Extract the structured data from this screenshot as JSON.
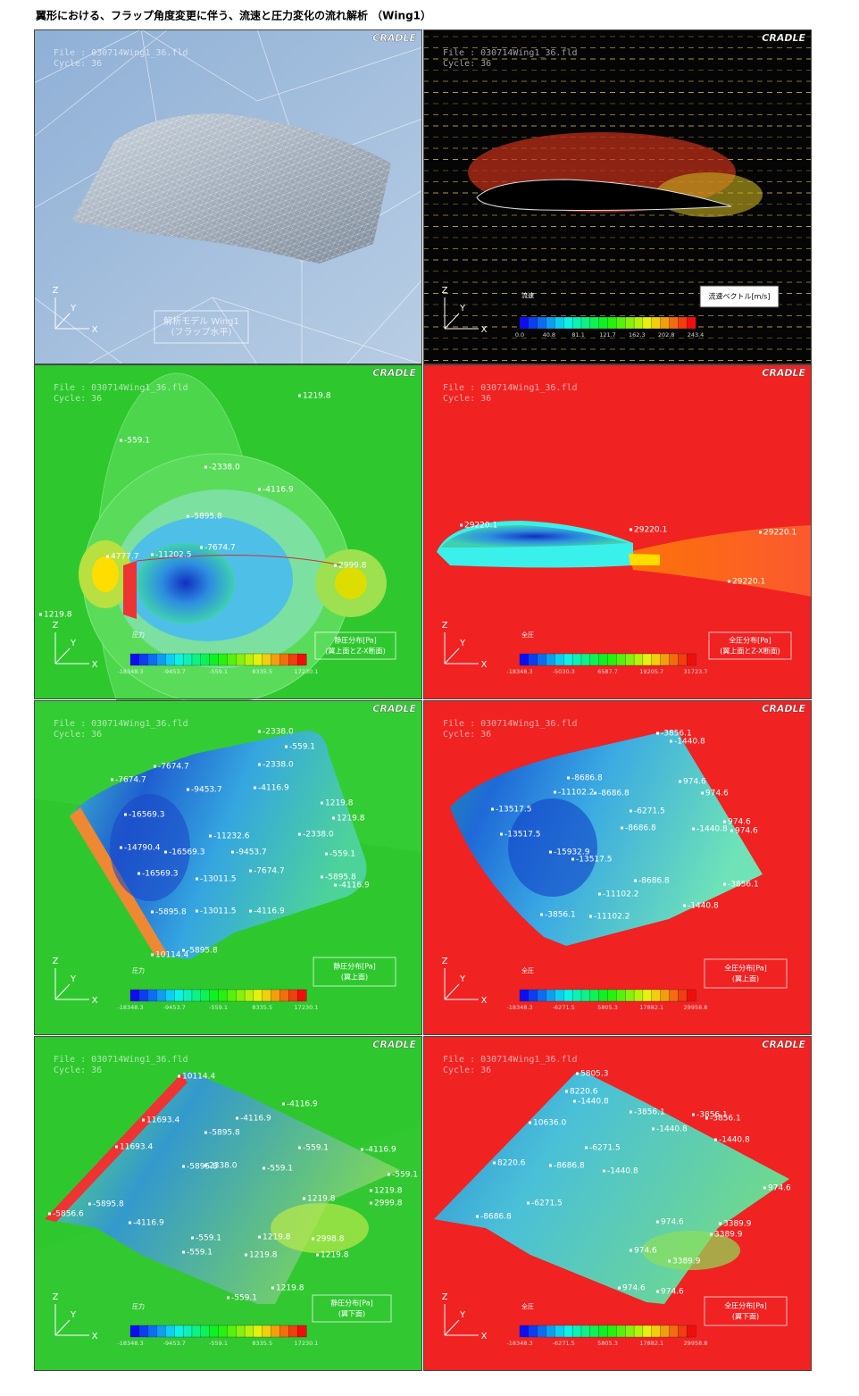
{
  "title": "翼形における、フラップ角度変更に伴う、流速と圧力変化の流れ解析 （Wing1）",
  "panels": [
    {
      "brand": "CRADLE",
      "file": "File : 030714Wing1_36.fld",
      "cycle": "Cycle: 36",
      "axes": [
        "Z",
        "Y",
        "X"
      ],
      "caption": [
        "解析モデル Wing1",
        "(フラップ水平)"
      ]
    },
    {
      "brand": "CRADLE",
      "file": "File : 030714Wing1_36.fld",
      "cycle": "Cycle: 36",
      "axes": [
        "Z",
        "Y",
        "X"
      ],
      "caption": [
        "流速ベクトル[m/s]"
      ],
      "colorbar": {
        "title": "流速",
        "ticks": [
          "0.0",
          "40.8",
          "81.1",
          "121.7",
          "162.3",
          "202.8",
          "243.4"
        ]
      }
    },
    {
      "brand": "CRADLE",
      "file": "File : 030714Wing1_36.fld",
      "cycle": "Cycle: 36",
      "axes": [
        "Z",
        "Y",
        "X"
      ],
      "caption": [
        "静圧分布[Pa]",
        "(翼上面とZ-X断面)"
      ],
      "colorbar": {
        "title": "圧力",
        "ticks": [
          "-18348.3",
          "-9453.7",
          "-559.1",
          "8335.5",
          "17230.1"
        ]
      },
      "labels": [
        "4777.7",
        "-11202.5",
        "1219.8",
        "-559.1",
        "-2338.0",
        "-4116.9",
        "-5895.8",
        "-7674.7",
        "2999.8",
        "1219.8"
      ]
    },
    {
      "brand": "CRADLE",
      "file": "File : 030714Wing1_36.fld",
      "cycle": "Cycle: 36",
      "axes": [
        "Z",
        "Y",
        "X"
      ],
      "caption": [
        "全圧分布[Pa]",
        "(翼上面とZ-X断面)"
      ],
      "colorbar": {
        "title": "全圧",
        "ticks": [
          "-18348.3",
          "-5030.3",
          "6587.7",
          "19205.7",
          "31723.7"
        ]
      },
      "labels": [
        "29220.1",
        "29220.1",
        "29220.1",
        "29220.1"
      ]
    },
    {
      "brand": "CRADLE",
      "file": "File : 030714Wing1_36.fld",
      "cycle": "Cycle: 36",
      "axes": [
        "Z",
        "Y",
        "X"
      ],
      "caption": [
        "静圧分布[Pa]",
        "(翼上面)"
      ],
      "colorbar": {
        "title": "圧力",
        "ticks": [
          "-18348.3",
          "-9453.7",
          "-559.1",
          "8335.5",
          "17230.1"
        ]
      },
      "labels": [
        "-2338.0",
        "-559.1",
        "-7674.7",
        "-2338.0",
        "-7674.7",
        "-9453.7",
        "-4116.9",
        "1219.8",
        "1219.8",
        "-16569.3",
        "-11232.6",
        "-2338.0",
        "-14790.4",
        "-16569.3",
        "-9453.7",
        "-559.1",
        "-7674.7",
        "-5895.8",
        "-16569.3",
        "-13011.5",
        "-4116.9",
        "-5895.8",
        "-13011.5",
        "-4116.9",
        "10114.4",
        "-5895.8"
      ]
    },
    {
      "brand": "CRADLE",
      "file": "File : 030714Wing1_36.fld",
      "cycle": "Cycle: 36",
      "axes": [
        "Z",
        "Y",
        "X"
      ],
      "caption": [
        "全圧分布[Pa]",
        "(翼上面)"
      ],
      "colorbar": {
        "title": "全圧",
        "ticks": [
          "-18348.3",
          "-6271.5",
          "5805.3",
          "17882.1",
          "29958.8"
        ]
      },
      "labels": [
        "-3856.1",
        "-1440.8",
        "-8686.8",
        "-11102.2",
        "-8686.8",
        "974.6",
        "974.6",
        "-13517.5",
        "-6271.5",
        "-13517.5",
        "-8686.8",
        "974.6",
        "-1440.8",
        "974.6",
        "-15932.9",
        "-13517.5",
        "-8686.8",
        "-3856.1",
        "-11102.2",
        "-1440.8",
        "-3856.1",
        "-11102.2"
      ]
    },
    {
      "brand": "CRADLE",
      "file": "File : 030714Wing1_36.fld",
      "cycle": "Cycle: 36",
      "axes": [
        "Z",
        "Y",
        "X"
      ],
      "caption": [
        "静圧分布[Pa]",
        "(翼下面)"
      ],
      "colorbar": {
        "title": "圧力",
        "ticks": [
          "-18348.3",
          "-9453.7",
          "-559.1",
          "8335.5",
          "17230.1"
        ]
      },
      "labels": [
        "10114.4",
        "-4116.9",
        "11693.4",
        "-4116.9",
        "-5895.8",
        "11693.4",
        "-4116.9",
        "-559.1",
        "-5895.8",
        "2338.0",
        "-559.1",
        "-559.1",
        "1219.8",
        "1219.8",
        "2999.8",
        "-5895.8",
        "-4116.9",
        "-559.1",
        "1219.8",
        "2998.8",
        "-559.1",
        "1219.8",
        "1219.8",
        "1219.8",
        "-559.1",
        "-5856.6"
      ]
    },
    {
      "brand": "CRADLE",
      "file": "File : 030714Wing1_36.fld",
      "cycle": "Cycle: 36",
      "axes": [
        "Z",
        "Y",
        "X"
      ],
      "caption": [
        "全圧分布[Pa]",
        "(翼下面)"
      ],
      "colorbar": {
        "title": "全圧",
        "ticks": [
          "-18348.3",
          "-6271.5",
          "5805.3",
          "17882.1",
          "29958.8"
        ]
      },
      "labels": [
        "5805.3",
        "8220.6",
        "-1440.8",
        "10636.0",
        "-3856.1",
        "-3856.1",
        "-3856.1",
        "-1440.8",
        "-6271.5",
        "-1440.8",
        "8220.6",
        "-8686.8",
        "-1440.8",
        "974.6",
        "-6271.5",
        "-8686.8",
        "974.6",
        "3389.9",
        "3389.9",
        "974.6",
        "3389.9",
        "974.6",
        "974.6"
      ]
    }
  ]
}
